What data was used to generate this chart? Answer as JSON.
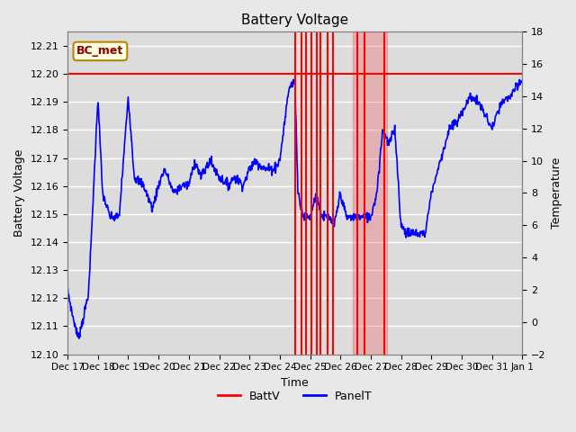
{
  "title": "Battery Voltage",
  "xlabel": "Time",
  "ylabel_left": "Battery Voltage",
  "ylabel_right": "Temperature",
  "annotation_text": "BC_met",
  "ylim_left": [
    12.1,
    12.215
  ],
  "ylim_right": [
    -2,
    18
  ],
  "background_color": "#e8e8e8",
  "plot_bg_color": "#dcdcdc",
  "grid_color": "white",
  "batt_line_color": "red",
  "panel_line_color": "blue",
  "batt_constant": 12.2,
  "x_tick_labels": [
    "Dec 17",
    "Dec 18",
    "Dec 19",
    "Dec 20",
    "Dec 21",
    "Dec 22",
    "Dec 23",
    "Dec 24",
    "Dec 25",
    "Dec 26",
    "Dec 27",
    "Dec 28",
    "Dec 29",
    "Dec 30",
    "Dec 31",
    "Jan 1"
  ],
  "red_vlines": [
    7.5,
    7.72,
    7.87,
    8.05,
    8.22,
    8.35,
    8.57,
    8.75,
    9.55,
    9.8,
    10.45
  ],
  "red_fill_regions": [
    [
      9.4,
      10.55
    ]
  ],
  "yticks_left": [
    12.1,
    12.11,
    12.12,
    12.13,
    12.14,
    12.15,
    12.16,
    12.17,
    12.18,
    12.19,
    12.2,
    12.21
  ],
  "yticks_right": [
    -2,
    0,
    2,
    4,
    6,
    8,
    10,
    12,
    14,
    16,
    18
  ]
}
